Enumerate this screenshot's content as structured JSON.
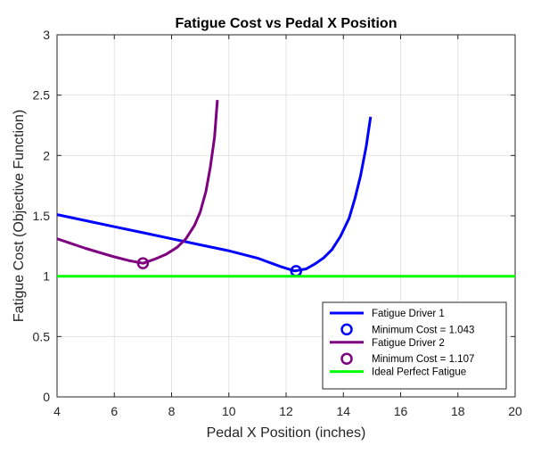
{
  "chart_data": {
    "type": "line",
    "title": "Fatigue Cost vs Pedal X Position",
    "xlabel": "Pedal X Position (inches)",
    "ylabel": "Fatigue Cost (Objective Function)",
    "xlim": [
      4,
      20
    ],
    "ylim": [
      0,
      3
    ],
    "xticks": [
      4,
      6,
      8,
      10,
      12,
      14,
      16,
      18,
      20
    ],
    "yticks": [
      0,
      0.5,
      1,
      1.5,
      2,
      2.5,
      3
    ],
    "xtick_labels": [
      "4",
      "6",
      "8",
      "10",
      "12",
      "14",
      "16",
      "18",
      "20"
    ],
    "ytick_labels": [
      "0",
      "0.5",
      "1",
      "1.5",
      "2",
      "2.5",
      "3"
    ],
    "grid": true,
    "legend_position": "bottom-right",
    "series": [
      {
        "name": "Fatigue Driver 1",
        "kind": "line",
        "color": "#0000ff",
        "x": [
          4,
          5,
          6,
          7,
          8,
          9,
          10,
          11,
          11.8,
          12.3,
          12.7,
          13.0,
          13.3,
          13.6,
          13.9,
          14.2,
          14.4,
          14.6,
          14.8,
          14.95
        ],
        "y": [
          1.51,
          1.46,
          1.41,
          1.36,
          1.31,
          1.26,
          1.21,
          1.15,
          1.08,
          1.043,
          1.06,
          1.1,
          1.15,
          1.22,
          1.33,
          1.48,
          1.64,
          1.83,
          2.08,
          2.32
        ]
      },
      {
        "name": "Minimum Cost = 1.043",
        "kind": "marker",
        "color": "#0000ff",
        "x": [
          12.35
        ],
        "y": [
          1.043
        ]
      },
      {
        "name": "Fatigue Driver 2",
        "kind": "line",
        "color": "#7e0080",
        "x": [
          4,
          5,
          6,
          6.5,
          7.0,
          7.4,
          7.8,
          8.2,
          8.5,
          8.8,
          9.0,
          9.2,
          9.35,
          9.5,
          9.6
        ],
        "y": [
          1.31,
          1.23,
          1.16,
          1.13,
          1.107,
          1.14,
          1.18,
          1.24,
          1.31,
          1.42,
          1.53,
          1.7,
          1.9,
          2.15,
          2.46
        ]
      },
      {
        "name": "Minimum Cost = 1.107",
        "kind": "marker",
        "color": "#7e0080",
        "x": [
          7.0
        ],
        "y": [
          1.107
        ]
      },
      {
        "name": "Ideal Perfect Fatigue",
        "kind": "line",
        "color": "#00ff00",
        "x": [
          4,
          20
        ],
        "y": [
          1,
          1
        ]
      }
    ]
  }
}
